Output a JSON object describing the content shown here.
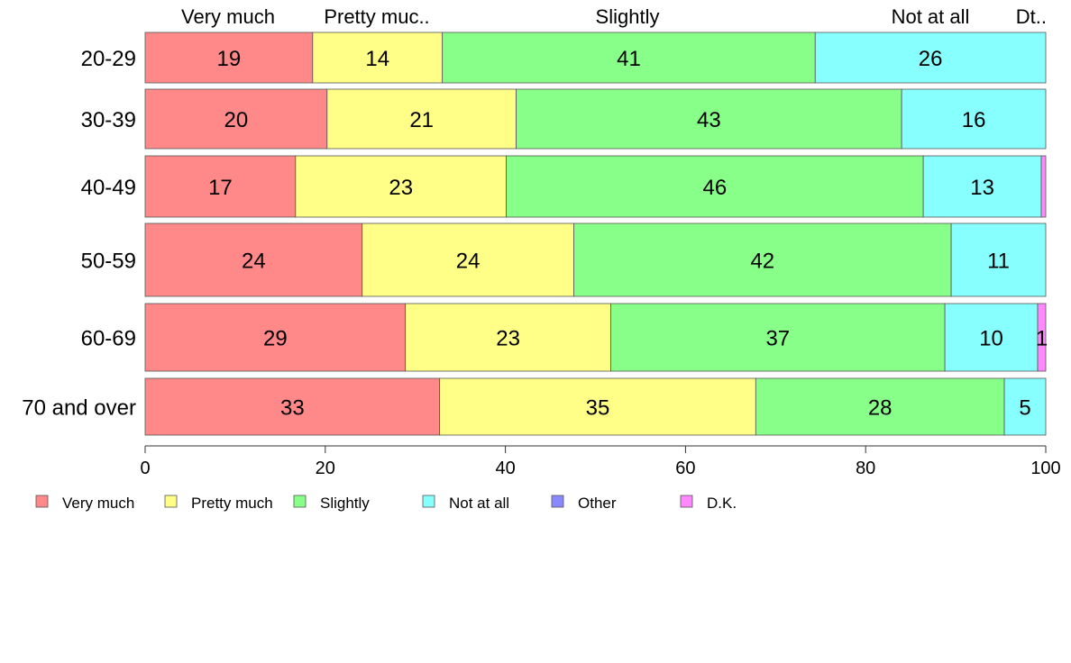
{
  "chart_data": {
    "type": "bar",
    "orientation": "horizontal",
    "stacked": true,
    "categories": [
      "20-29",
      "30-39",
      "40-49",
      "50-59",
      "60-69",
      "70 and over"
    ],
    "series": [
      {
        "name": "Very much",
        "color": "#FF8888",
        "values": [
          18.6,
          20.2,
          16.7,
          24.1,
          28.9,
          32.7
        ]
      },
      {
        "name": "Pretty much",
        "color": "#FFFF88",
        "values": [
          14.4,
          21.0,
          23.4,
          23.5,
          22.8,
          35.1
        ]
      },
      {
        "name": "Slightly",
        "color": "#88FF88",
        "values": [
          41.4,
          42.8,
          46.3,
          41.9,
          37.1,
          27.6
        ]
      },
      {
        "name": "Not at all",
        "color": "#88FFFF",
        "values": [
          25.6,
          16.0,
          13.1,
          10.5,
          10.3,
          4.6
        ]
      },
      {
        "name": "Other",
        "color": "#8888FF",
        "values": [
          0,
          0,
          0,
          0,
          0,
          0
        ]
      },
      {
        "name": "D.K.",
        "color": "#FF88FF",
        "values": [
          0,
          0,
          0.5,
          0,
          0.9,
          0
        ]
      }
    ],
    "data_labels": [
      [
        "19",
        "14",
        "41",
        "26",
        "",
        ""
      ],
      [
        "20",
        "21",
        "43",
        "16",
        "",
        ""
      ],
      [
        "17",
        "23",
        "46",
        "13",
        "",
        ""
      ],
      [
        "24",
        "24",
        "42",
        "11",
        "",
        ""
      ],
      [
        "29",
        "23",
        "37",
        "10",
        "",
        "1"
      ],
      [
        "33",
        "35",
        "28",
        "5",
        "",
        ""
      ]
    ],
    "top_labels": [
      "Very much",
      "Pretty muc..",
      "Slightly",
      "",
      "Not at all",
      "",
      "",
      "Dt.."
    ],
    "xlim": [
      0,
      100
    ],
    "x_ticks": [
      0,
      20,
      40,
      60,
      80,
      100
    ],
    "legend_position": "bottom"
  }
}
